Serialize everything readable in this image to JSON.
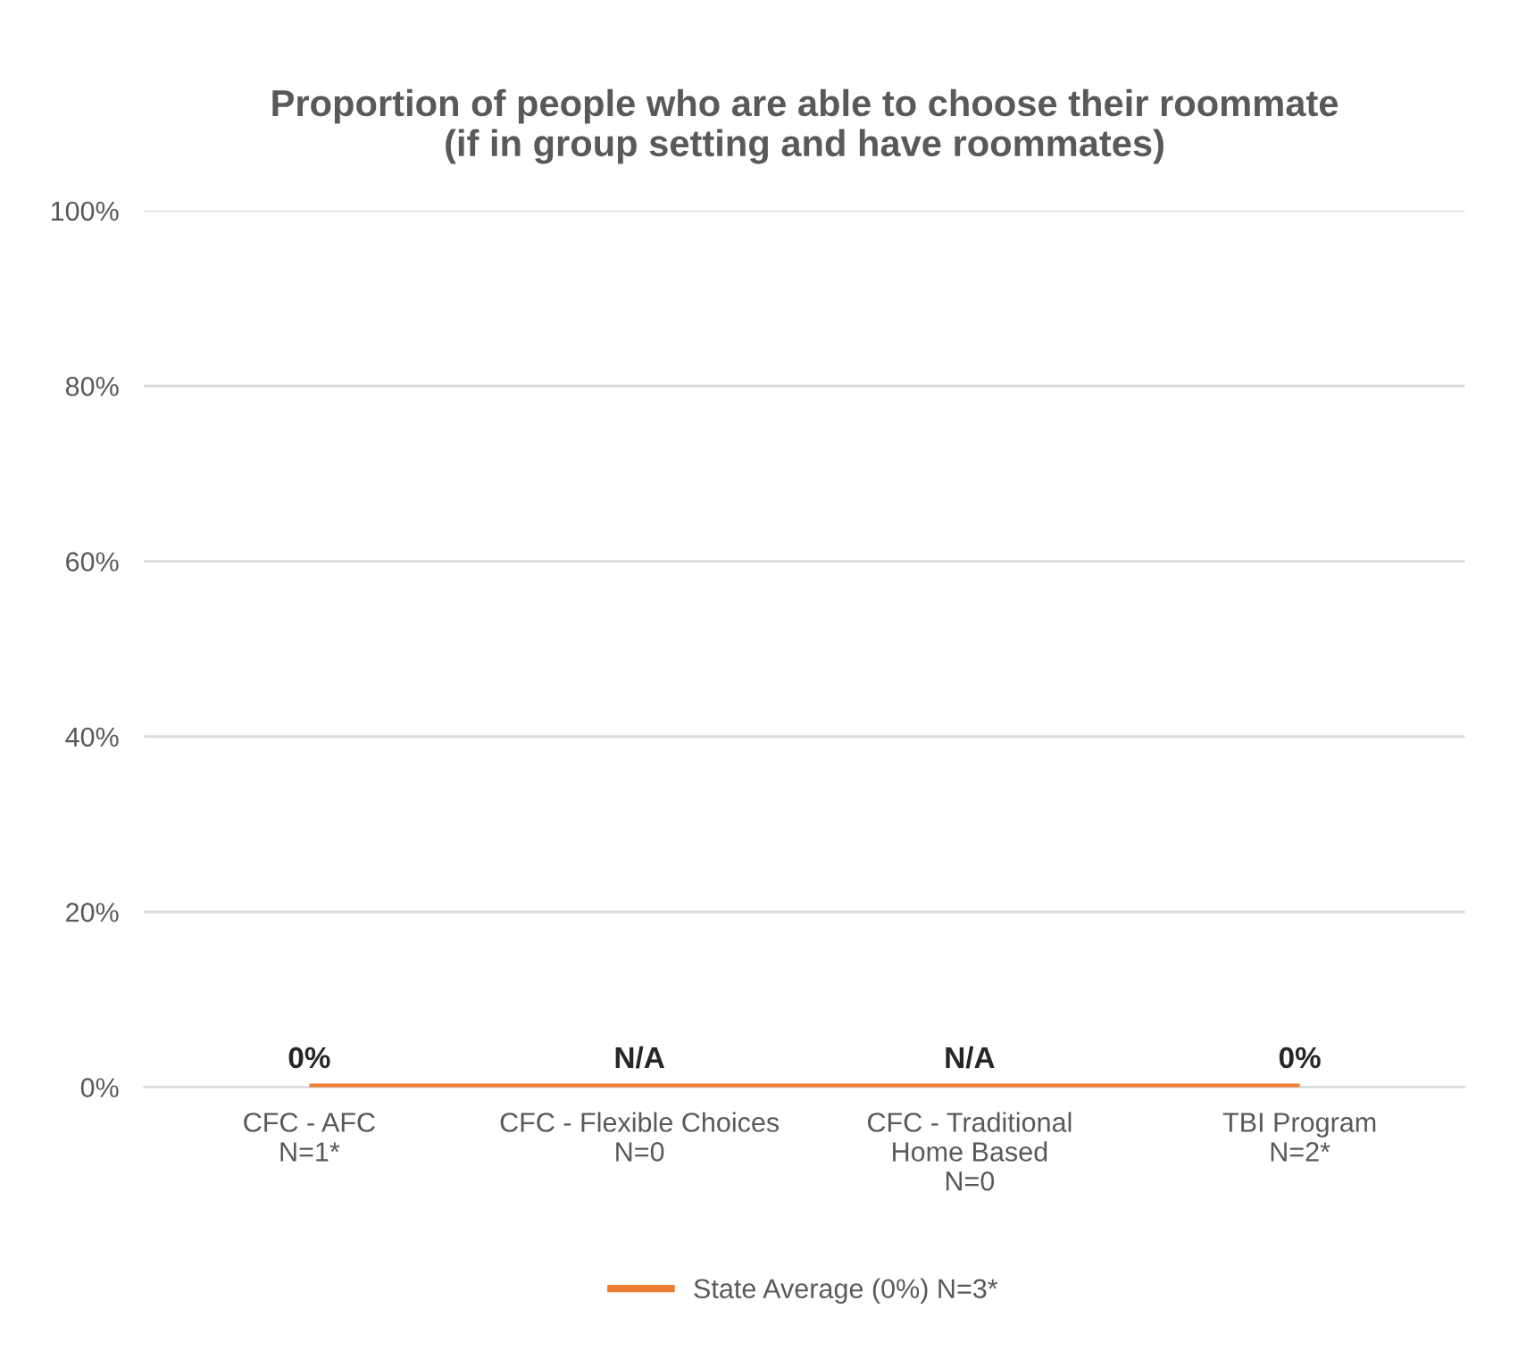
{
  "chart_data": {
    "type": "bar",
    "title": "Proportion of people who are able to choose their roommate\n(if in group setting and have roommates)",
    "categories": [
      "CFC - AFC\nN=1*",
      "CFC - Flexible Choices\nN=0",
      "CFC - Traditional\nHome Based\nN=0",
      "TBI Program\nN=2*"
    ],
    "series": [
      {
        "color": "#4472c4",
        "values": [
          0,
          null,
          null,
          0
        ],
        "value_labels": [
          "0%",
          "N/A",
          "N/A",
          "0%"
        ]
      },
      {
        "type": "line",
        "name": "State Average (0%) N=3*",
        "color": "#ed7d31",
        "values": [
          0,
          0,
          0,
          0
        ]
      }
    ],
    "ylim": [
      0,
      100
    ],
    "yticks": [
      {
        "value": 0,
        "label": "0%"
      },
      {
        "value": 20,
        "label": "20%"
      },
      {
        "value": 40,
        "label": "40%"
      },
      {
        "value": 60,
        "label": "60%"
      },
      {
        "value": 80,
        "label": "80%"
      },
      {
        "value": 100,
        "label": "100%"
      }
    ],
    "grid": "y",
    "legend": "bottom"
  }
}
